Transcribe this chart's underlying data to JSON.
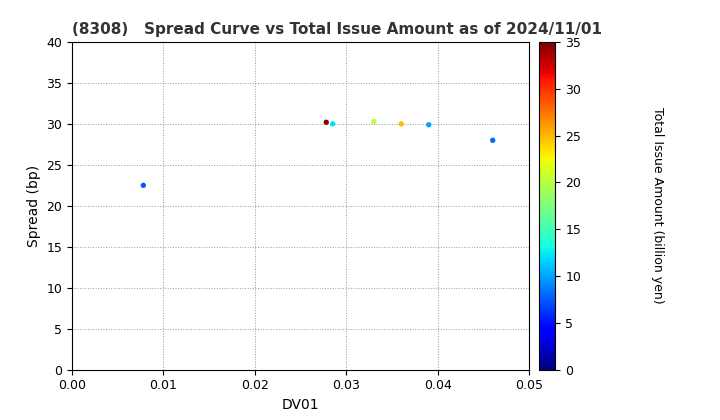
{
  "title": "(8308)   Spread Curve vs Total Issue Amount as of 2024/11/01",
  "xlabel": "DV01",
  "ylabel": "Spread (bp)",
  "colorbar_label": "Total Issue Amount (billion yen)",
  "xlim": [
    0.0,
    0.05
  ],
  "ylim": [
    0,
    40
  ],
  "xticks": [
    0.0,
    0.01,
    0.02,
    0.03,
    0.04,
    0.05
  ],
  "yticks": [
    0,
    5,
    10,
    15,
    20,
    25,
    30,
    35,
    40
  ],
  "colorbar_ticks": [
    0,
    5,
    10,
    15,
    20,
    25,
    30,
    35
  ],
  "colorbar_range": [
    0,
    35
  ],
  "points": [
    {
      "dv01": 0.0078,
      "spread": 22.5,
      "amount": 7.5
    },
    {
      "dv01": 0.0278,
      "spread": 30.2,
      "amount": 35
    },
    {
      "dv01": 0.0285,
      "spread": 30.0,
      "amount": 12
    },
    {
      "dv01": 0.033,
      "spread": 30.3,
      "amount": 20
    },
    {
      "dv01": 0.036,
      "spread": 30.0,
      "amount": 25
    },
    {
      "dv01": 0.039,
      "spread": 29.9,
      "amount": 10
    },
    {
      "dv01": 0.046,
      "spread": 28.0,
      "amount": 8
    }
  ],
  "marker_size": 8,
  "cmap": "jet",
  "background_color": "#ffffff",
  "grid_color": "#999999",
  "title_fontsize": 11,
  "axis_label_fontsize": 10,
  "tick_fontsize": 9,
  "colorbar_label_fontsize": 9,
  "colorbar_tick_fontsize": 9
}
